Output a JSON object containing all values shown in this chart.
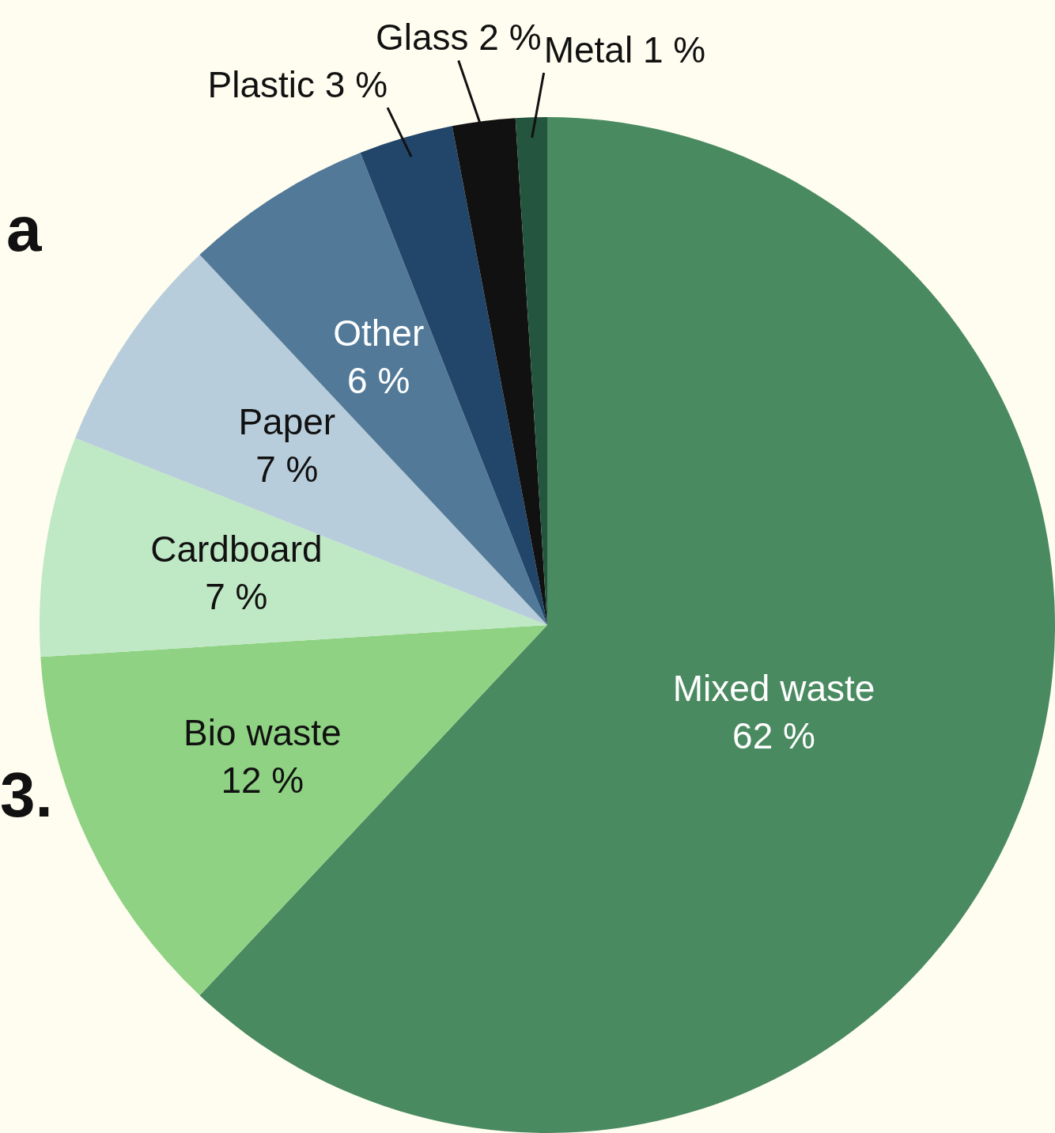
{
  "chart_data": {
    "type": "pie",
    "categories": [
      "Mixed waste",
      "Bio waste",
      "Cardboard",
      "Paper",
      "Other",
      "Plastic",
      "Glass",
      "Metal"
    ],
    "values": [
      62,
      12,
      7,
      7,
      6,
      3,
      2,
      1
    ],
    "value_labels": [
      "62 %",
      "12 %",
      "7 %",
      "7 %",
      "6 %",
      "3 %",
      "2 %",
      "1 %"
    ],
    "colors": [
      "#4a8a60",
      "#8fd283",
      "#bfe8c4",
      "#b8cddb",
      "#527a98",
      "#22456a",
      "#111111",
      "#24553f"
    ],
    "annotations": [
      "a",
      "3."
    ],
    "legend": false
  }
}
